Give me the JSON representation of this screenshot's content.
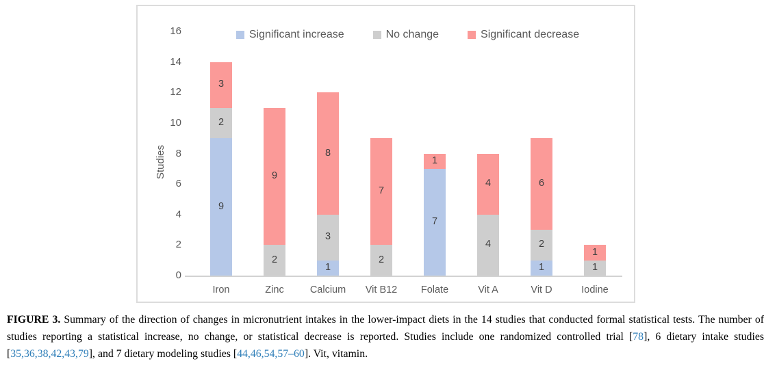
{
  "chart_data": {
    "type": "bar",
    "subtype": "stacked",
    "title": "",
    "xlabel": "",
    "ylabel": "Studies",
    "ylim": [
      0,
      16
    ],
    "ytick_step": 2,
    "grid": false,
    "legend_position": "top",
    "categories": [
      "Iron",
      "Zinc",
      "Calcium",
      "Vit B12",
      "Folate",
      "Vit A",
      "Vit D",
      "Iodine"
    ],
    "series": [
      {
        "name": "Significant increase",
        "color": "#b5c8e8",
        "values": [
          9,
          0,
          1,
          0,
          7,
          0,
          1,
          0
        ]
      },
      {
        "name": "No change",
        "color": "#cecece",
        "values": [
          2,
          2,
          3,
          2,
          0,
          4,
          2,
          1
        ]
      },
      {
        "name": "Significant decrease",
        "color": "#fb9a98",
        "values": [
          3,
          9,
          8,
          7,
          1,
          4,
          6,
          1
        ]
      }
    ],
    "totals": [
      14,
      11,
      12,
      9,
      8,
      8,
      9,
      2
    ]
  },
  "caption": {
    "parts": [
      {
        "type": "bold",
        "text": "FIGURE 3."
      },
      {
        "type": "text",
        "text": "  Summary of the direction of changes in micronutrient intakes in the lower-impact diets in the 14 studies that conducted formal statistical tests. The number of studies reporting a statistical increase, no change, or statistical decrease is reported. Studies include one randomized controlled trial ["
      },
      {
        "type": "cite",
        "text": "78"
      },
      {
        "type": "text",
        "text": "], 6 dietary intake studies ["
      },
      {
        "type": "cite",
        "text": "35,36,38,42,43,79"
      },
      {
        "type": "text",
        "text": "], and 7 dietary modeling studies ["
      },
      {
        "type": "cite",
        "text": "44,46,54,57–60"
      },
      {
        "type": "text",
        "text": "]. Vit, vitamin."
      }
    ]
  },
  "colors": {
    "increase": "#b5c8e8",
    "no_change": "#cecece",
    "decrease": "#fb9a98",
    "axis_text": "#595959",
    "chart_border": "#dcdcdc",
    "citation_link": "#2e7eb8"
  }
}
